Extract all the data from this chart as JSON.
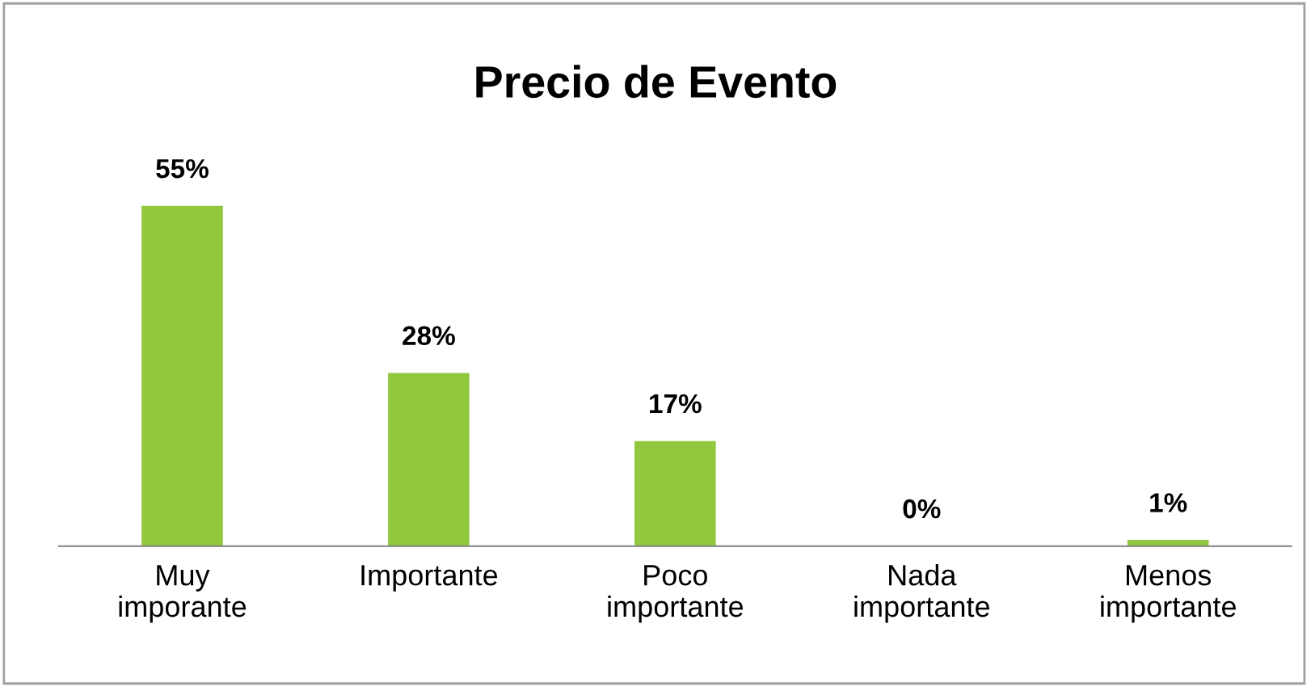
{
  "chart_data": {
    "type": "bar",
    "title": "Precio de Evento",
    "categories": [
      "Muy\nimporante",
      "Importante",
      "Poco\nimportante",
      "Nada\nimportante",
      "Menos\nimportante"
    ],
    "values": [
      55,
      28,
      17,
      0,
      1
    ],
    "value_labels": [
      "55%",
      "28%",
      "17%",
      "0%",
      "1%"
    ],
    "color": "#92c83e",
    "grid": false,
    "legend": false
  }
}
